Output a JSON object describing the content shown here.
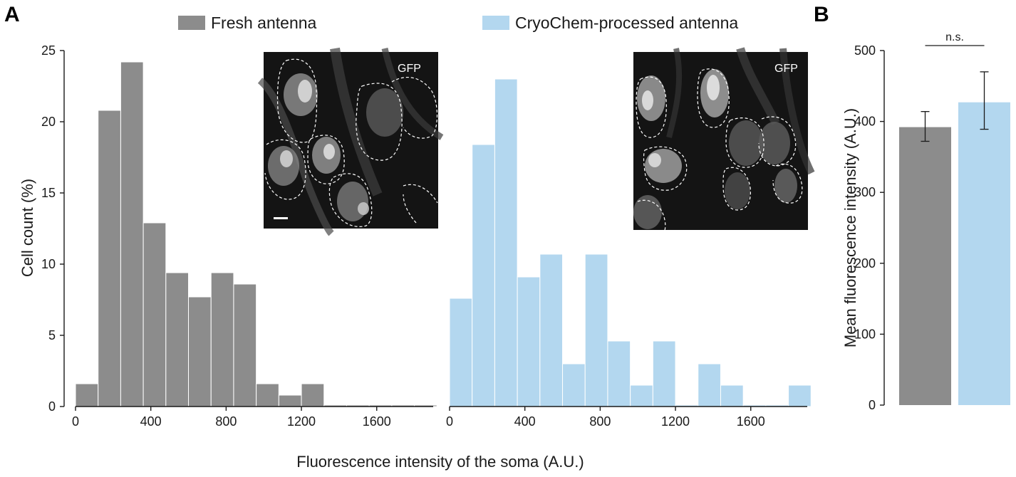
{
  "panels": {
    "a": "A",
    "b": "B"
  },
  "colors": {
    "fresh": "#8c8c8c",
    "cryo": "#b3d7ef",
    "axis": "#1a1a1a",
    "inset_bg": "#141414"
  },
  "inset": {
    "label": "GFP"
  },
  "chart_data": [
    {
      "type": "bar",
      "name": "Fresh antenna",
      "bin_width": 120,
      "bin_starts": [
        0,
        120,
        240,
        360,
        480,
        600,
        720,
        840,
        960,
        1080,
        1200,
        1320,
        1440,
        1560,
        1680,
        1800
      ],
      "values": [
        1.6,
        20.8,
        24.2,
        12.9,
        9.4,
        7.7,
        9.4,
        8.6,
        1.6,
        0.8,
        1.6,
        0.1,
        0.1,
        0.1,
        0.1,
        0.1
      ],
      "xlim": [
        0,
        1900
      ],
      "ylim": [
        0,
        25
      ],
      "xticks": [
        0,
        400,
        800,
        1200,
        1600
      ],
      "yticks": [
        0,
        5,
        10,
        15,
        20,
        25
      ],
      "ylabel": "Cell count (%)",
      "legend": "Fresh antenna",
      "color": "#8c8c8c"
    },
    {
      "type": "bar",
      "name": "CryoChem-processed antenna",
      "bin_width": 120,
      "bin_starts": [
        0,
        120,
        240,
        360,
        480,
        600,
        720,
        840,
        960,
        1080,
        1200,
        1320,
        1440,
        1560,
        1680,
        1800
      ],
      "values": [
        7.6,
        18.4,
        23.0,
        9.1,
        10.7,
        3.0,
        10.7,
        4.6,
        1.5,
        4.6,
        0.1,
        3.0,
        1.5,
        0.1,
        0.1,
        1.5
      ],
      "xlim": [
        0,
        1900
      ],
      "xticks": [
        0,
        400,
        800,
        1200,
        1600
      ],
      "legend": "CryoChem-processed antenna",
      "color": "#b3d7ef"
    },
    {
      "type": "bar",
      "name": "Mean fluorescence",
      "categories": [
        "Fresh antenna",
        "CryoChem-processed antenna"
      ],
      "values": [
        392,
        427
      ],
      "errors": [
        [
          372,
          414
        ],
        [
          389,
          470
        ]
      ],
      "ylim": [
        0,
        500
      ],
      "yticks": [
        0,
        100,
        200,
        300,
        400,
        500
      ],
      "ylabel": "Mean fluorescence intensity (A.U.)",
      "significance": "n.s."
    }
  ],
  "shared_xlabel": "Fluorescence intensity of the soma (A.U.)"
}
